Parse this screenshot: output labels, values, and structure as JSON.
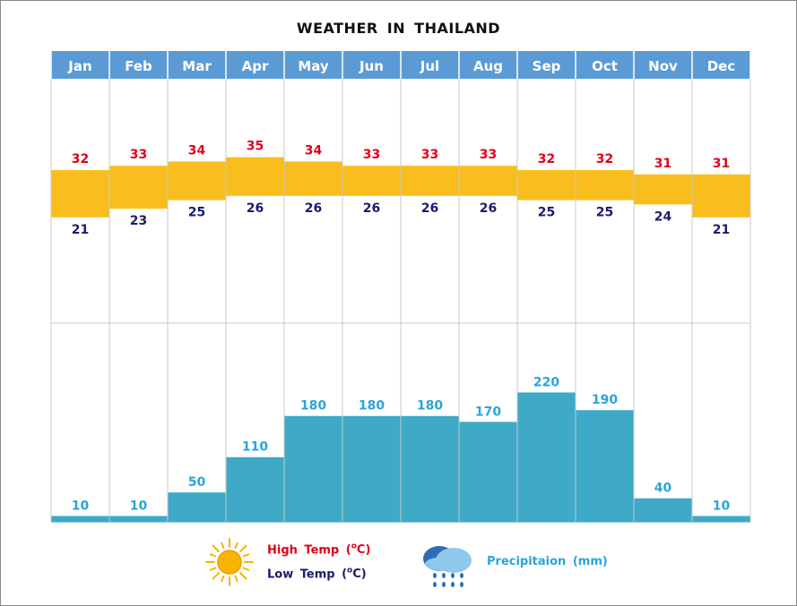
{
  "title": "WEATHER IN THAILAND",
  "legend": {
    "high_label": "High Temp",
    "low_label": "Low Temp",
    "temp_unit": "(°C)",
    "precip_label": "Precipitaion (mm)",
    "high_icon": "sun-icon",
    "precip_icon": "rain-cloud-icon"
  },
  "colors": {
    "header": "#5b9bd5",
    "temp_band": "#f9be1e",
    "precip_bar": "#3eaac7",
    "high_text": "#e0001a",
    "low_text": "#1b1b6e",
    "precip_text": "#29a4dc"
  },
  "chart_data": {
    "type": "bar",
    "title": "WEATHER IN THAILAND",
    "categories": [
      "Jan",
      "Feb",
      "Mar",
      "Apr",
      "May",
      "Jun",
      "Jul",
      "Aug",
      "Sep",
      "Oct",
      "Nov",
      "Dec"
    ],
    "series": [
      {
        "name": "High Temp (°C)",
        "values": [
          32,
          33,
          34,
          35,
          34,
          33,
          33,
          33,
          32,
          32,
          31,
          31
        ]
      },
      {
        "name": "Low Temp (°C)",
        "values": [
          21,
          23,
          25,
          26,
          26,
          26,
          26,
          26,
          25,
          25,
          24,
          21
        ]
      },
      {
        "name": "Precipitaion (mm)",
        "values": [
          10,
          10,
          50,
          110,
          180,
          180,
          180,
          170,
          220,
          190,
          40,
          10
        ]
      }
    ],
    "grid": true
  }
}
